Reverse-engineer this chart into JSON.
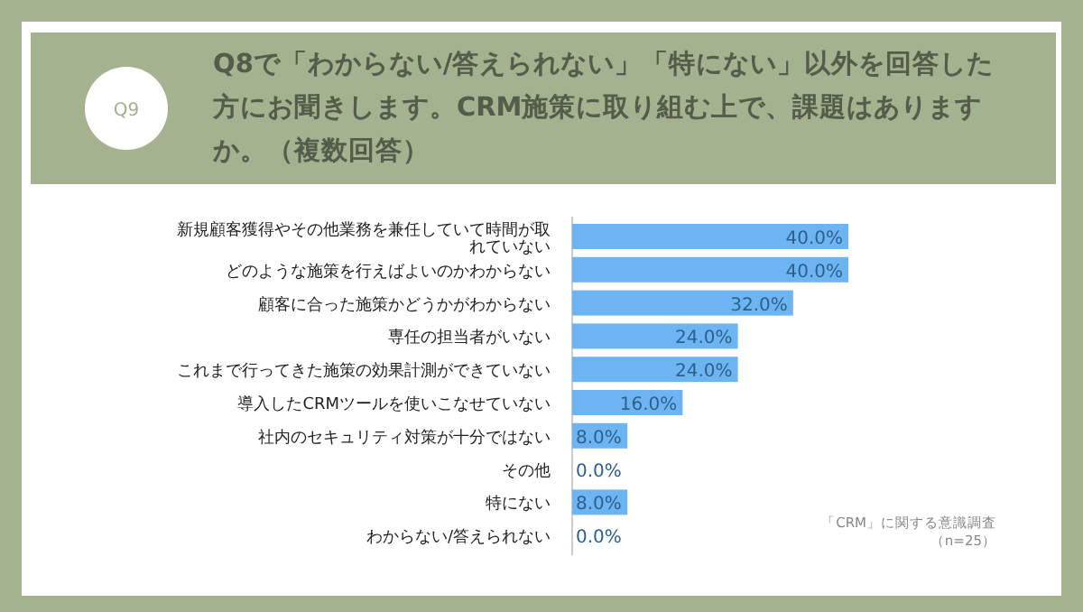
{
  "chart_data": {
    "type": "bar",
    "orientation": "horizontal",
    "data_labels": true,
    "title": "Q8で「わからない/答えられない」「特にない」以外を回答した方にお聞きします。CRM施策に取り組む上で、課題はありますか。（複数回答）",
    "categories": [
      "新規顧客獲得やその他業務を兼任していて時間が取れていない",
      "どのような施策を行えばよいのかわからない",
      "顧客に合った施策かどうかがわからない",
      "専任の担当者がいない",
      "これまで行ってきた施策の効果計測ができていない",
      "導入したCRMツールを使いこなせていない",
      "社内のセキュリティ対策が十分ではない",
      "その他",
      "特にない",
      "わからない/答えられない"
    ],
    "values": [
      40.0,
      40.0,
      32.0,
      24.0,
      24.0,
      16.0,
      8.0,
      0.0,
      8.0,
      0.0
    ],
    "value_labels": [
      "40.0%",
      "40.0%",
      "32.0%",
      "24.0%",
      "24.0%",
      "16.0%",
      "8.0%",
      "0.0%",
      "8.0%",
      "0.0%"
    ],
    "color": "#6db5f2",
    "annotations": [
      "Q9",
      "「CRM」に関する意識調査",
      "（n=25）"
    ]
  }
}
